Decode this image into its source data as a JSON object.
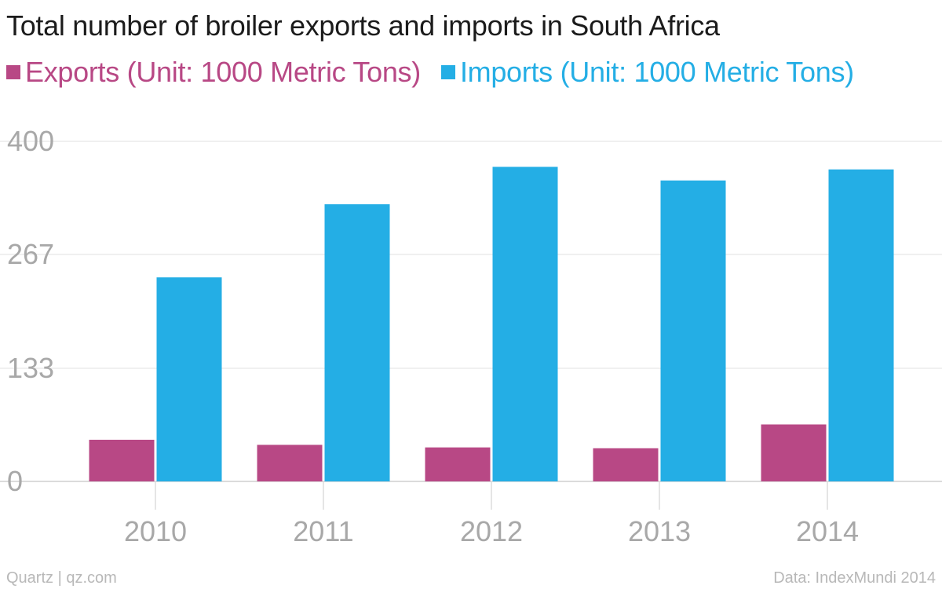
{
  "chart_data": {
    "type": "bar",
    "title": "Total number of broiler exports and imports in South Africa",
    "categories": [
      "2010",
      "2011",
      "2012",
      "2013",
      "2014"
    ],
    "series": [
      {
        "name": "Exports (Unit: 1000 Metric Tons)",
        "values": [
          49,
          43,
          40,
          39,
          67
        ],
        "color": "#b84885"
      },
      {
        "name": "Imports (Unit: 1000 Metric Tons)",
        "values": [
          240,
          326,
          370,
          354,
          367
        ],
        "color": "#24aee5"
      }
    ],
    "xlabel": "",
    "ylabel": "",
    "ylim": [
      0,
      400
    ],
    "yticks": [
      0,
      133,
      267,
      400
    ],
    "grid": true,
    "legend_position": "top-left"
  },
  "footer": {
    "source_left": "Quartz | qz.com",
    "source_right": "Data: IndexMundi 2014"
  }
}
